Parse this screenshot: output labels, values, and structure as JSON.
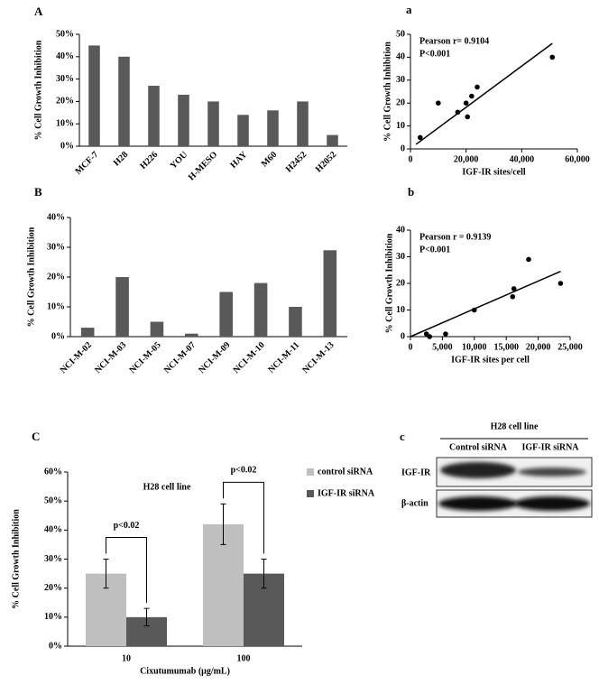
{
  "chart_data": [
    {
      "type": "bar",
      "panel_label": "A",
      "y_label": "% Cell Growth Inhibition",
      "color": "#595959",
      "categories": [
        "MCF-7",
        "H28",
        "H226",
        "YOU",
        "H-MESO",
        "HAY",
        "M60",
        "H2452",
        "H2052"
      ],
      "values": [
        45,
        40,
        27,
        23,
        20,
        14,
        16,
        20,
        5
      ],
      "ylim": [
        0,
        50
      ],
      "yticks": [
        {
          "value": 0,
          "label": "0%"
        },
        {
          "value": 10,
          "label": "10%"
        },
        {
          "value": 20,
          "label": "20%"
        },
        {
          "value": 30,
          "label": "30%"
        },
        {
          "value": 40,
          "label": "40%"
        },
        {
          "value": 50,
          "label": "50%"
        }
      ]
    },
    {
      "type": "scatter",
      "panel_label": "a",
      "y_label": "% Cell Growth Inhibition",
      "x_label": "IGF-IR sites/cell",
      "color": "#000000",
      "annotations": [
        "Pearson r= 0.9104",
        "P<0.001"
      ],
      "x": [
        3500,
        10000,
        17000,
        20000,
        20500,
        22000,
        24000,
        51000
      ],
      "values": [
        5,
        20,
        16,
        20,
        14,
        23,
        27,
        40
      ],
      "trend_line": {
        "x": [
          2000,
          51000
        ],
        "values": [
          2,
          46
        ]
      },
      "xlim": [
        0,
        60000
      ],
      "xticks": [
        0,
        {
          "value": 20000,
          "label": "20,000"
        },
        {
          "value": 40000,
          "label": "40,000"
        },
        {
          "value": 60000,
          "label": "60,000"
        }
      ],
      "ylim": [
        0,
        50
      ],
      "yticks": [
        0,
        10,
        20,
        30,
        40,
        50
      ]
    },
    {
      "type": "bar",
      "panel_label": "B",
      "y_label": "% Cell Growth Inhibition",
      "color": "#595959",
      "categories": [
        "NCI-M-02",
        "NCI-M-03",
        "NCI-M-05",
        "NCI-M-07",
        "NCI-M-09",
        "NCI-M-10",
        "NCI-M-11",
        "NCI-M-13"
      ],
      "values": [
        3,
        20,
        5,
        1,
        15,
        18,
        10,
        29
      ],
      "ylim": [
        0,
        40
      ],
      "yticks": [
        {
          "value": 0,
          "label": "0%"
        },
        {
          "value": 10,
          "label": "10%"
        },
        {
          "value": 20,
          "label": "20%"
        },
        {
          "value": 30,
          "label": "30%"
        },
        {
          "value": 40,
          "label": "40%"
        }
      ]
    },
    {
      "type": "scatter",
      "panel_label": "b",
      "y_label": "% Cell Growth Inhibition",
      "x_label": "IGF-IR sites per cell",
      "color": "#000000",
      "annotations": [
        "Pearson r = 0.9139",
        "P<0.001"
      ],
      "x": [
        2500,
        3000,
        5500,
        10000,
        16000,
        16200,
        18500,
        23500
      ],
      "values": [
        1,
        0,
        1,
        10,
        15,
        18,
        29,
        20
      ],
      "trend_line": {
        "x": [
          0,
          23500
        ],
        "values": [
          0,
          24.5
        ]
      },
      "xlim": [
        0,
        25000
      ],
      "xticks": [
        0,
        {
          "value": 5000,
          "label": "5,000"
        },
        {
          "value": 10000,
          "label": "10,000"
        },
        {
          "value": 15000,
          "label": "15,000"
        },
        {
          "value": 20000,
          "label": "20,000"
        },
        {
          "value": 25000,
          "label": "25,000"
        }
      ],
      "ylim": [
        0,
        40
      ],
      "yticks": [
        0,
        10,
        20,
        30,
        40
      ]
    },
    {
      "type": "grouped_bar",
      "panel_label": "C",
      "title": "H28 cell line",
      "y_label": "% Cell Growth Inhibition",
      "x_label": "Cixutumumab (μg/mL)",
      "categories": [
        "10",
        "100"
      ],
      "series": [
        {
          "name": "control siRNA",
          "color": "#bfbfbf",
          "values": [
            25,
            42
          ],
          "errors": [
            5,
            7
          ]
        },
        {
          "name": "IGF-IR siRNA",
          "color": "#595959",
          "values": [
            10,
            25
          ],
          "errors": [
            3,
            5
          ]
        }
      ],
      "annotations": [
        "p<0.02",
        "p<0.02"
      ],
      "ylim": [
        0,
        60
      ],
      "yticks": [
        {
          "value": 0,
          "label": "0%"
        },
        {
          "value": 10,
          "label": "10%"
        },
        {
          "value": 20,
          "label": "20%"
        },
        {
          "value": 30,
          "label": "30%"
        },
        {
          "value": 40,
          "label": "40%"
        },
        {
          "value": 50,
          "label": "50%"
        },
        {
          "value": 60,
          "label": "60%"
        }
      ]
    }
  ],
  "blot": {
    "panel_label": "c",
    "title": "H28 cell line",
    "lanes": [
      "Control siRNA",
      "IGF-IR siRNA"
    ],
    "rows": [
      "IGF-IR",
      "β-actin"
    ]
  }
}
